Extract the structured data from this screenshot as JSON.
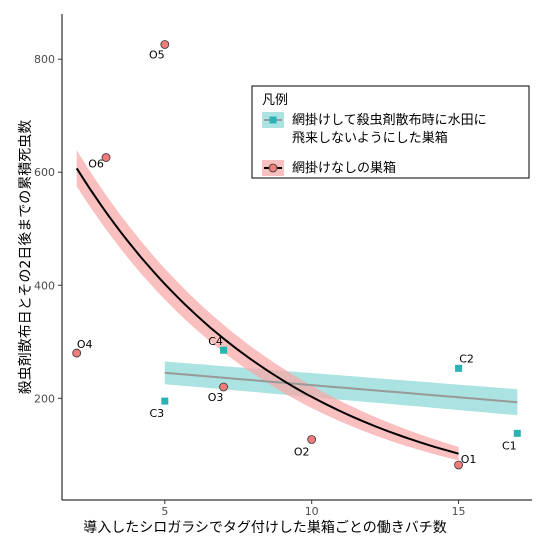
{
  "chart_data": {
    "type": "scatter",
    "xlabel": "導入したシロガラシでタグ付けした巣箱ごとの働きバチ数",
    "ylabel": "殺虫剤散布日とその2日後までの累積死虫数",
    "xlim": [
      1.5,
      17.5
    ],
    "ylim": [
      20,
      880
    ],
    "x_ticks": [
      5,
      10,
      15
    ],
    "y_ticks": [
      200,
      400,
      600,
      800
    ],
    "grid": false,
    "legend": {
      "title": "凡例",
      "placement": "top-right",
      "entries": [
        {
          "lines": [
            "網掛けして殺虫剤散布時に水田に",
            "飛来しないようにした巣箱"
          ],
          "series": "netted"
        },
        {
          "lines": [
            "網掛けなしの巣箱"
          ],
          "series": "open"
        }
      ]
    },
    "series": [
      {
        "key": "netted",
        "marker": "square",
        "color": "#2bb3b3",
        "band_color": "#8fd8d8",
        "line_color": "#999999",
        "points": [
          {
            "label": "C1",
            "x": 17,
            "y": 138
          },
          {
            "label": "C2",
            "x": 15,
            "y": 253
          },
          {
            "label": "C3",
            "x": 5,
            "y": 195
          },
          {
            "label": "C4",
            "x": 7,
            "y": 285
          }
        ],
        "fit": {
          "x_start": 5,
          "x_end": 17,
          "y_start": 245,
          "y_end": 193,
          "band_start": 20,
          "band_end": 23
        }
      },
      {
        "key": "open",
        "marker": "circle",
        "color": "#f07b7b",
        "band_color": "#f8aaaa",
        "line_color": "#000000",
        "points": [
          {
            "label": "O1",
            "x": 15,
            "y": 82
          },
          {
            "label": "O2",
            "x": 10,
            "y": 127
          },
          {
            "label": "O3",
            "x": 7,
            "y": 220
          },
          {
            "label": "O4",
            "x": 2,
            "y": 280
          },
          {
            "label": "O5",
            "x": 5,
            "y": 826
          },
          {
            "label": "O6",
            "x": 3,
            "y": 626
          }
        ],
        "fit": {
          "x_start": 2,
          "x_end": 15,
          "y_start": 607,
          "y_end": 102,
          "band_start": 32,
          "band_end": 12
        }
      }
    ]
  }
}
